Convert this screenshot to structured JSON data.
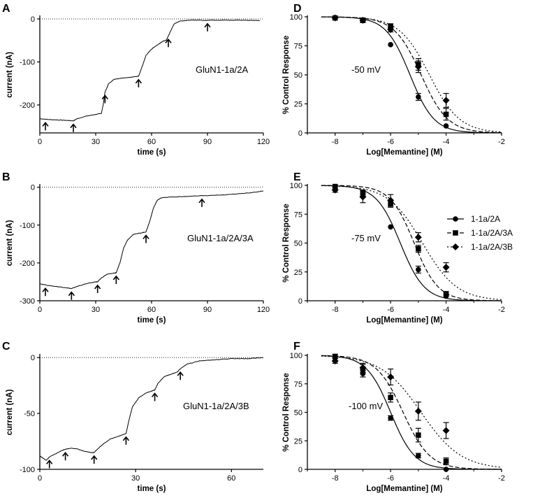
{
  "chart_data": [
    {
      "panel": "A",
      "type": "line",
      "xlabel": "time (s)",
      "ylabel": "current (nA)",
      "xlim": [
        0,
        120
      ],
      "ylim": [
        -265,
        5
      ],
      "xticks": [
        0,
        30,
        60,
        90,
        120
      ],
      "yticks": [
        0,
        -100,
        -200
      ],
      "label": "GluN1-1a/2A",
      "trace": [
        [
          0,
          -232
        ],
        [
          5,
          -234
        ],
        [
          10,
          -235
        ],
        [
          15,
          -236
        ],
        [
          18,
          -237
        ],
        [
          20,
          -232
        ],
        [
          25,
          -226
        ],
        [
          30,
          -222
        ],
        [
          33,
          -220
        ],
        [
          34,
          -200
        ],
        [
          35,
          -170
        ],
        [
          37,
          -150
        ],
        [
          40,
          -140
        ],
        [
          45,
          -137
        ],
        [
          50,
          -135
        ],
        [
          53,
          -133
        ],
        [
          55,
          -110
        ],
        [
          57,
          -85
        ],
        [
          60,
          -70
        ],
        [
          64,
          -58
        ],
        [
          66,
          -52
        ],
        [
          68,
          -49
        ],
        [
          70,
          -30
        ],
        [
          72,
          -12
        ],
        [
          75,
          -5
        ],
        [
          80,
          -3
        ],
        [
          90,
          -3
        ],
        [
          100,
          -3
        ],
        [
          110,
          -3
        ],
        [
          118,
          -4
        ]
      ],
      "arrows_x": [
        3,
        18,
        35,
        53,
        69,
        90
      ]
    },
    {
      "panel": "B",
      "type": "line",
      "xlabel": "time (s)",
      "ylabel": "current (nA)",
      "xlim": [
        0,
        120
      ],
      "ylim": [
        -300,
        5
      ],
      "xticks": [
        0,
        30,
        60,
        90,
        120
      ],
      "yticks": [
        0,
        -100,
        -200,
        -300
      ],
      "label": "GluN1-1a/2A/3A",
      "trace": [
        [
          0,
          -255
        ],
        [
          5,
          -260
        ],
        [
          10,
          -263
        ],
        [
          15,
          -266
        ],
        [
          17,
          -268
        ],
        [
          20,
          -262
        ],
        [
          25,
          -255
        ],
        [
          30,
          -250
        ],
        [
          31,
          -250
        ],
        [
          33,
          -240
        ],
        [
          36,
          -230
        ],
        [
          40,
          -227
        ],
        [
          41,
          -226
        ],
        [
          43,
          -200
        ],
        [
          45,
          -160
        ],
        [
          47,
          -140
        ],
        [
          50,
          -125
        ],
        [
          55,
          -120
        ],
        [
          57,
          -118
        ],
        [
          59,
          -90
        ],
        [
          61,
          -55
        ],
        [
          63,
          -35
        ],
        [
          65,
          -28
        ],
        [
          70,
          -26
        ],
        [
          80,
          -24
        ],
        [
          90,
          -22
        ],
        [
          100,
          -20
        ],
        [
          110,
          -16
        ],
        [
          120,
          -10
        ]
      ],
      "arrows_x": [
        3,
        17,
        31,
        41,
        57,
        87
      ]
    },
    {
      "panel": "C",
      "type": "line",
      "xlabel": "time (s)",
      "ylabel": "current (nA)",
      "xlim": [
        0,
        70
      ],
      "ylim": [
        -100,
        2
      ],
      "xticks": [
        0,
        30,
        60
      ],
      "yticks": [
        0,
        -50,
        -100
      ],
      "label": "GluN1-1a/2A/3B",
      "trace": [
        [
          0,
          -88
        ],
        [
          1,
          -90
        ],
        [
          2,
          -92
        ],
        [
          3,
          -89
        ],
        [
          5,
          -86
        ],
        [
          7,
          -83
        ],
        [
          8,
          -82
        ],
        [
          10,
          -81
        ],
        [
          12,
          -82
        ],
        [
          14,
          -84
        ],
        [
          16,
          -85
        ],
        [
          17,
          -85
        ],
        [
          18,
          -82
        ],
        [
          20,
          -77
        ],
        [
          22,
          -73
        ],
        [
          25,
          -70
        ],
        [
          27,
          -68
        ],
        [
          28,
          -55
        ],
        [
          29,
          -44
        ],
        [
          31,
          -36
        ],
        [
          33,
          -32
        ],
        [
          35,
          -30
        ],
        [
          36,
          -29
        ],
        [
          37,
          -23
        ],
        [
          39,
          -17
        ],
        [
          41,
          -15
        ],
        [
          43,
          -13
        ],
        [
          44,
          -10
        ],
        [
          46,
          -6
        ],
        [
          50,
          -3
        ],
        [
          55,
          -2
        ],
        [
          60,
          -1
        ],
        [
          65,
          -1
        ],
        [
          70,
          0
        ]
      ],
      "arrows_x": [
        3,
        8,
        17,
        27,
        36,
        44
      ]
    },
    {
      "panel": "D",
      "type": "scatter",
      "xlabel": "Log[Memantine] (M)",
      "ylabel": "% Control Response",
      "xlim": [
        -9,
        -2
      ],
      "ylim": [
        0,
        100
      ],
      "xticks": [
        -8,
        -6,
        -4,
        -2
      ],
      "yticks": [
        0,
        25,
        50,
        75,
        100
      ],
      "label": "-50 mV",
      "series": [
        {
          "marker": "circle",
          "dash": "none",
          "ic50": -5.3,
          "hill": 1.0,
          "x": [
            -8,
            -7,
            -6,
            -5,
            -4
          ],
          "y": [
            99,
            97,
            76,
            31,
            6
          ],
          "err": [
            1,
            1,
            1,
            3,
            1
          ]
        },
        {
          "marker": "square",
          "dash": "6,3",
          "ic50": -4.9,
          "hill": 0.9,
          "x": [
            -8,
            -7,
            -6,
            -5,
            -4
          ],
          "y": [
            99,
            97,
            92,
            59,
            16
          ],
          "err": [
            1,
            2,
            2,
            5,
            5
          ]
        },
        {
          "marker": "diamond",
          "dash": "2,3",
          "ic50": -4.6,
          "hill": 0.8,
          "x": [
            -8,
            -7,
            -6,
            -5,
            -4
          ],
          "y": [
            99,
            97,
            89,
            57,
            28
          ],
          "err": [
            1,
            2,
            2,
            5,
            6
          ]
        }
      ]
    },
    {
      "panel": "E",
      "type": "scatter",
      "xlabel": "Log[Memantine] (M)",
      "ylabel": "% Control Response",
      "xlim": [
        -9,
        -2
      ],
      "ylim": [
        0,
        100
      ],
      "xticks": [
        -8,
        -6,
        -4,
        -2
      ],
      "yticks": [
        0,
        25,
        50,
        75,
        100
      ],
      "label": "-75 mV",
      "legend_position": "right",
      "series": [
        {
          "name": "1-1a/2A",
          "marker": "circle",
          "dash": "none",
          "ic50": -5.65,
          "hill": 1.0,
          "x": [
            -8,
            -7,
            -6,
            -5,
            -4
          ],
          "y": [
            99,
            93,
            64,
            27,
            4
          ],
          "err": [
            1,
            2,
            1,
            3,
            1
          ]
        },
        {
          "name": "1-1a/2A/3A",
          "marker": "square",
          "dash": "6,3",
          "ic50": -5.15,
          "hill": 1.0,
          "x": [
            -8,
            -7,
            -6,
            -5,
            -4
          ],
          "y": [
            99,
            94,
            84,
            45,
            6
          ],
          "err": [
            1,
            2,
            3,
            3,
            2
          ]
        },
        {
          "name": "1-1a/2A/3B",
          "marker": "diamond",
          "dash": "2,3",
          "ic50": -4.85,
          "hill": 0.7,
          "x": [
            -8,
            -7,
            -6,
            -5,
            -4
          ],
          "y": [
            96,
            90,
            87,
            55,
            29
          ],
          "err": [
            2,
            5,
            5,
            4,
            4
          ]
        }
      ]
    },
    {
      "panel": "F",
      "type": "scatter",
      "xlabel": "Log[Memantine] (M)",
      "ylabel": "% Control Response",
      "xlim": [
        -9,
        -2
      ],
      "ylim": [
        0,
        100
      ],
      "xticks": [
        -8,
        -6,
        -4,
        -2
      ],
      "yticks": [
        0,
        25,
        50,
        75,
        100
      ],
      "label": "-100 mV",
      "series": [
        {
          "marker": "circle",
          "dash": "none",
          "ic50": -6.0,
          "hill": 1.0,
          "x": [
            -8,
            -7,
            -6,
            -5,
            -4
          ],
          "y": [
            98,
            84,
            45,
            12,
            0
          ],
          "err": [
            1,
            3,
            2,
            2,
            1
          ]
        },
        {
          "marker": "square",
          "dash": "6,3",
          "ic50": -5.55,
          "hill": 0.9,
          "x": [
            -8,
            -7,
            -6,
            -5,
            -4
          ],
          "y": [
            99,
            88,
            63,
            30,
            7
          ],
          "err": [
            2,
            4,
            4,
            6,
            3
          ]
        },
        {
          "marker": "diamond",
          "dash": "2,3",
          "ic50": -4.9,
          "hill": 0.6,
          "x": [
            -8,
            -7,
            -6,
            -5,
            -4
          ],
          "y": [
            95,
            89,
            81,
            51,
            34
          ],
          "err": [
            2,
            4,
            7,
            8,
            7
          ]
        }
      ]
    }
  ]
}
